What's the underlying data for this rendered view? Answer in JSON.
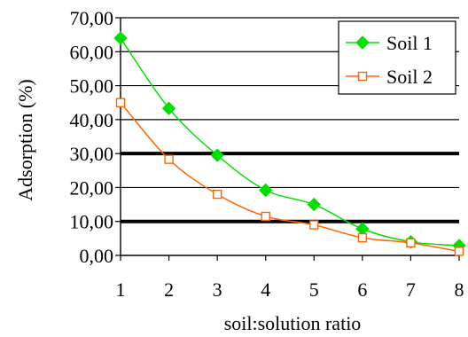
{
  "chart_data": {
    "type": "line",
    "title": "",
    "xlabel": "soil:solution ratio",
    "ylabel": "Adsorption (%)",
    "x": [
      1,
      2,
      3,
      4,
      5,
      6,
      7,
      8
    ],
    "x_tick_labels": [
      "1",
      "2",
      "3",
      "4",
      "5",
      "6",
      "7",
      "8"
    ],
    "y_tick_labels": [
      "0,00",
      "10,00",
      "20,00",
      "30,00",
      "40,00",
      "50,00",
      "60,00",
      "70,00"
    ],
    "ylim": [
      0,
      70
    ],
    "y_ticks": [
      0,
      10,
      20,
      30,
      40,
      50,
      60,
      70
    ],
    "grid": "horizontal",
    "highlighted_gridlines": [
      10,
      30
    ],
    "legend_position": "top-right",
    "smooth": true,
    "series": [
      {
        "name": "Soil 1",
        "color": "#00e000",
        "marker": "filled-diamond",
        "values": [
          64.0,
          43.3,
          29.5,
          19.2,
          15.0,
          7.8,
          4.0,
          2.9
        ]
      },
      {
        "name": "Soil 2",
        "color": "#ff6600",
        "marker": "open-square",
        "values": [
          45.0,
          28.3,
          18.0,
          11.5,
          9.0,
          5.2,
          3.7,
          1.2
        ]
      }
    ]
  }
}
